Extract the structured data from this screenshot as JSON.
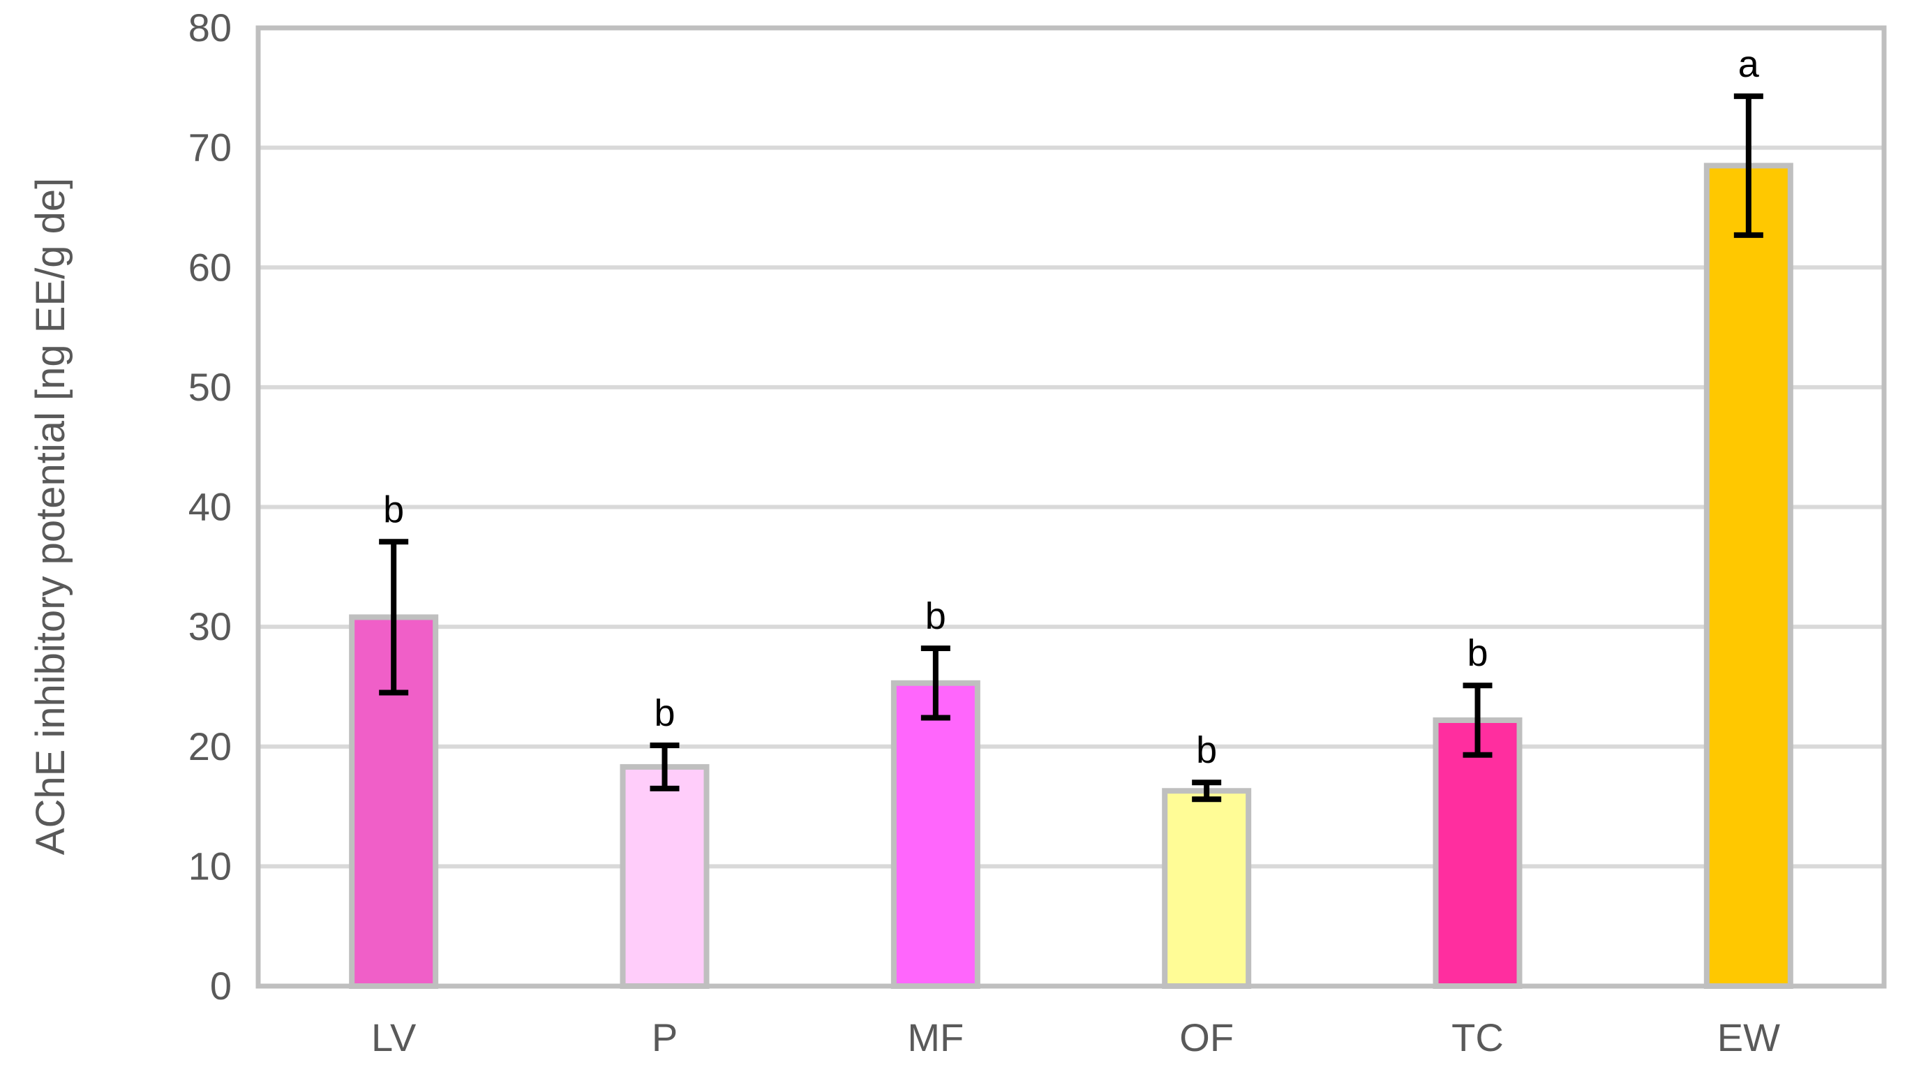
{
  "chart_data": {
    "type": "bar",
    "title": "",
    "xlabel": "",
    "ylabel": "AChE inhibitory potential [ng EE/g de]",
    "ylim": [
      0,
      80
    ],
    "yticks": [
      0,
      10,
      20,
      30,
      40,
      50,
      60,
      70,
      80
    ],
    "grid": true,
    "legend": "none",
    "categories": [
      "LV",
      "P",
      "MF",
      "OF",
      "TC",
      "EW"
    ],
    "values": [
      30.8,
      18.3,
      25.3,
      16.3,
      22.2,
      68.5
    ],
    "error_bars": [
      6.3,
      1.8,
      2.9,
      0.7,
      2.9,
      5.8
    ],
    "significance_letters": [
      "b",
      "b",
      "b",
      "b",
      "b",
      "a"
    ],
    "bar_colors": [
      "#F05FC8",
      "#FFCDFA",
      "#FF66FC",
      "#FFFC96",
      "#FF2E9F",
      "#FFC800"
    ],
    "bar_border_color": "#BFBFBF",
    "error_bar_color": "#000000",
    "gridline_color": "#D9D9D9",
    "axis_frame_color": "#BFBFBF",
    "text_color": "#595959"
  }
}
